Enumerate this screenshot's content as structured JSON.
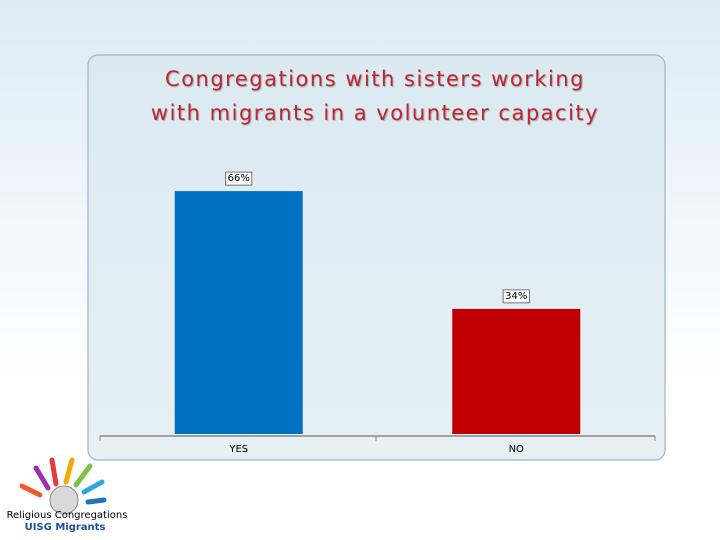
{
  "chart_data": {
    "type": "bar",
    "title": "Congregations with sisters working with migrants in a volunteer capacity",
    "categories": [
      "YES",
      "NO"
    ],
    "values": [
      66,
      34
    ],
    "value_labels": [
      "66%",
      "34%"
    ],
    "colors": [
      "#0070c0",
      "#c00000"
    ]
  },
  "logo": {
    "tagline": "Religious Congregations",
    "name": "UISG Migrants"
  }
}
